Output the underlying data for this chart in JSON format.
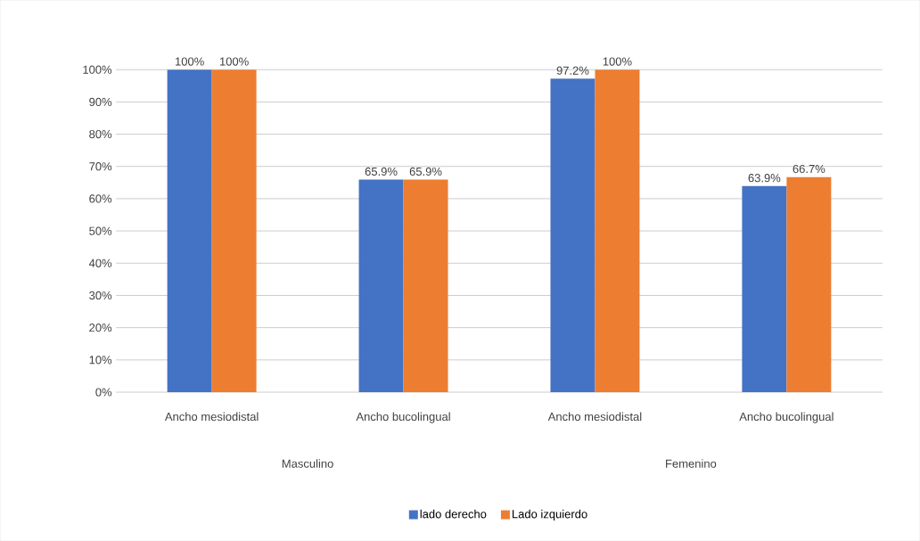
{
  "chart_data": {
    "type": "bar",
    "categories": [
      "Ancho mesiodistal",
      "Ancho bucolingual",
      "Ancho mesiodistal",
      "Ancho bucolingual"
    ],
    "annotations": [
      "Masculino",
      "Femenino"
    ],
    "series": [
      {
        "name": "lado derecho",
        "color": "#4472c4",
        "values": [
          100,
          65.9,
          97.2,
          63.9
        ],
        "value_labels": [
          "100%",
          "65.9%",
          "97.2%",
          "63.9%"
        ]
      },
      {
        "name": "Lado izquierdo",
        "color": "#ed7d31",
        "values": [
          100,
          65.9,
          100,
          66.7
        ],
        "value_labels": [
          "100%",
          "65.9%",
          "100%",
          "66.7%"
        ]
      }
    ],
    "ylim": [
      0,
      100
    ],
    "yticks": [
      {
        "value": 0,
        "label": "0%"
      },
      {
        "value": 10,
        "label": "10%"
      },
      {
        "value": 20,
        "label": "20%"
      },
      {
        "value": 30,
        "label": "30%"
      },
      {
        "value": 40,
        "label": "40%"
      },
      {
        "value": 50,
        "label": "50%"
      },
      {
        "value": 60,
        "label": "60%"
      },
      {
        "value": 70,
        "label": "70%"
      },
      {
        "value": 80,
        "label": "80%"
      },
      {
        "value": 90,
        "label": "90%"
      },
      {
        "value": 100,
        "label": "100%"
      }
    ],
    "grid": "y",
    "legend": "bottom"
  }
}
